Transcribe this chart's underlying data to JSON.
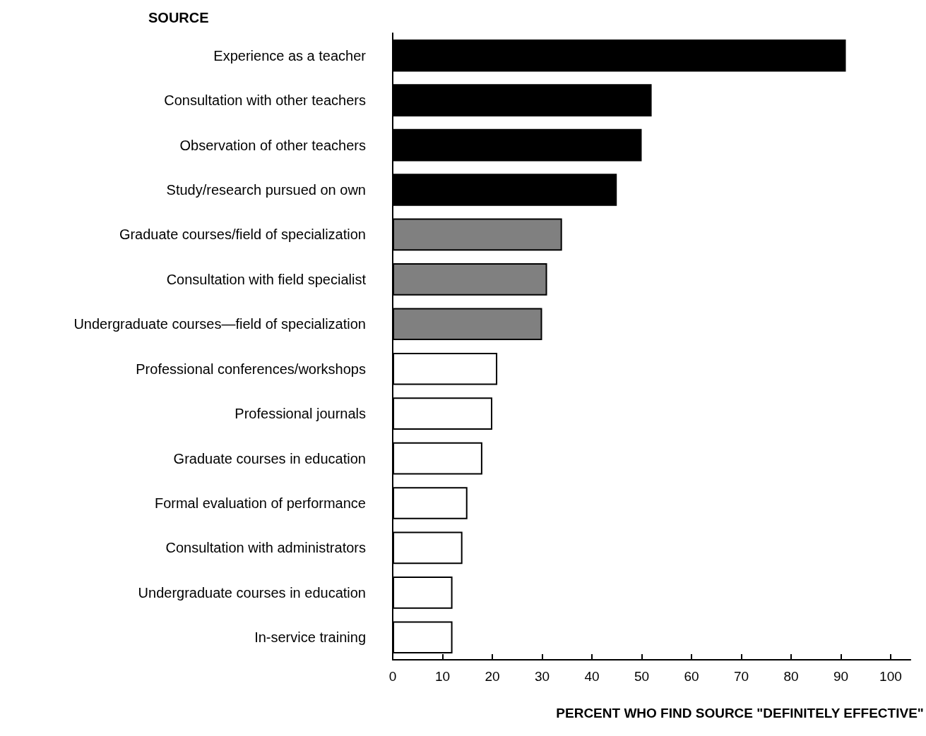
{
  "chart_data": {
    "type": "bar",
    "orientation": "horizontal",
    "ylabel": "SOURCE",
    "xlabel": "PERCENT WHO FIND SOURCE \"DEFINITELY EFFECTIVE\"",
    "categories": [
      "Experience as a teacher",
      "Consultation with other teachers",
      "Observation of other teachers",
      "Study/research pursued on own",
      "Graduate courses/field of specialization",
      "Consultation with field specialist",
      "Undergraduate courses—field of specialization",
      "Professional conferences/workshops",
      "Professional journals",
      "Graduate courses in education",
      "Formal evaluation of performance",
      "Consultation with administrators",
      "Undergraduate courses in education",
      "In-service training"
    ],
    "values": [
      91,
      52,
      50,
      45,
      34,
      31,
      30,
      21,
      20,
      18,
      15,
      14,
      12,
      12
    ],
    "colors": [
      "#000000",
      "#000000",
      "#000000",
      "#000000",
      "#808080",
      "#808080",
      "#808080",
      "#ffffff",
      "#ffffff",
      "#ffffff",
      "#ffffff",
      "#ffffff",
      "#ffffff",
      "#ffffff"
    ],
    "xlim": [
      0,
      104
    ],
    "xticks": [
      0,
      10,
      20,
      30,
      40,
      50,
      60,
      70,
      80,
      90,
      100
    ]
  }
}
